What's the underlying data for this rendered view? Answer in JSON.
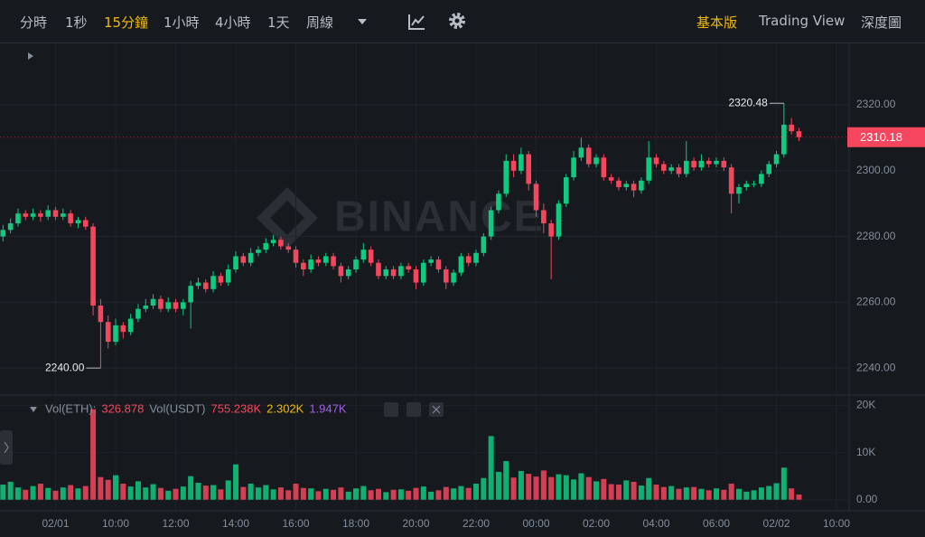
{
  "toolbar": {
    "intervals": [
      "分時",
      "1秒",
      "15分鐘",
      "1小時",
      "4小時",
      "1天",
      "周線"
    ],
    "views": [
      "基本版",
      "Trading View",
      "深度圖"
    ]
  },
  "chart_data": {
    "type": "candlestick",
    "watermark": "BINANCE",
    "up_color": "#0ecb81",
    "down_color": "#f6465d",
    "xlim": [
      6.15,
      34.42
    ],
    "xticks": [
      {
        "value": 8,
        "label": "02/01"
      },
      {
        "value": 10,
        "label": "10:00"
      },
      {
        "value": 12,
        "label": "12:00"
      },
      {
        "value": 14,
        "label": "14:00"
      },
      {
        "value": 16,
        "label": "16:00"
      },
      {
        "value": 18,
        "label": "18:00"
      },
      {
        "value": 20,
        "label": "20:00"
      },
      {
        "value": 22,
        "label": "22:00"
      },
      {
        "value": 24,
        "label": "00:00"
      },
      {
        "value": 26,
        "label": "02:00"
      },
      {
        "value": 28,
        "label": "04:00"
      },
      {
        "value": 30,
        "label": "06:00"
      },
      {
        "value": 32,
        "label": "02/02"
      },
      {
        "value": 34,
        "label": "10:00"
      }
    ],
    "ylim": [
      2231.8,
      2338.7
    ],
    "yticks": [
      {
        "value": 2240,
        "label": "2240.00"
      },
      {
        "value": 2260,
        "label": "2260.00"
      },
      {
        "value": 2280,
        "label": "2280.00"
      },
      {
        "value": 2300,
        "label": "2300.00"
      },
      {
        "value": 2320,
        "label": "2320.00"
      }
    ],
    "low_label": {
      "value": 2240,
      "label": "2240.00"
    },
    "candles": [
      [
        6.25,
        2280,
        2283.5,
        2278.5,
        2282
      ],
      [
        6.5,
        2282,
        2285.5,
        2281,
        2284
      ],
      [
        6.75,
        2284,
        2288.5,
        2283,
        2287
      ],
      [
        7,
        2287,
        2288,
        2285,
        2286
      ],
      [
        7.25,
        2286,
        2288.5,
        2285,
        2287
      ],
      [
        7.5,
        2287,
        2288,
        2284.5,
        2286
      ],
      [
        7.75,
        2286,
        2289.5,
        2285,
        2288
      ],
      [
        8,
        2288,
        2289,
        2285,
        2286
      ],
      [
        8.25,
        2286,
        2288.5,
        2285,
        2287
      ],
      [
        8.5,
        2287,
        2288,
        2283,
        2284
      ],
      [
        8.75,
        2284,
        2286,
        2282.5,
        2285
      ],
      [
        9,
        2285,
        2286,
        2282,
        2283
      ],
      [
        9.25,
        2283,
        2284,
        2256,
        2259
      ],
      [
        9.5,
        2259,
        2261,
        2240,
        2254
      ],
      [
        9.75,
        2254,
        2256,
        2246,
        2248
      ],
      [
        10,
        2248,
        2255,
        2247,
        2253
      ],
      [
        10.25,
        2253,
        2254,
        2249,
        2251
      ],
      [
        10.5,
        2251,
        2256.5,
        2250,
        2255
      ],
      [
        10.75,
        2255,
        2259.5,
        2254,
        2258
      ],
      [
        11,
        2258,
        2261,
        2257,
        2259
      ],
      [
        11.25,
        2259,
        2262.5,
        2258,
        2261
      ],
      [
        11.5,
        2261,
        2262,
        2257,
        2258
      ],
      [
        11.75,
        2258,
        2261.5,
        2257,
        2260
      ],
      [
        12,
        2260,
        2261,
        2257,
        2258
      ],
      [
        12.25,
        2258,
        2261,
        2256,
        2260
      ],
      [
        12.5,
        2260,
        2266.5,
        2252,
        2265
      ],
      [
        12.75,
        2265,
        2267.5,
        2264,
        2266
      ],
      [
        13,
        2266,
        2267,
        2263,
        2264
      ],
      [
        13.25,
        2264,
        2269.5,
        2263,
        2268
      ],
      [
        13.5,
        2268,
        2269,
        2265,
        2266
      ],
      [
        13.75,
        2266,
        2271.5,
        2265,
        2270
      ],
      [
        14,
        2270,
        2275.5,
        2269,
        2274
      ],
      [
        14.25,
        2274,
        2275,
        2271,
        2272
      ],
      [
        14.5,
        2272,
        2276.5,
        2271,
        2275
      ],
      [
        14.75,
        2275,
        2277,
        2274,
        2276
      ],
      [
        15,
        2276,
        2279.5,
        2275,
        2278
      ],
      [
        15.25,
        2278,
        2280.5,
        2277,
        2279
      ],
      [
        15.5,
        2279,
        2280,
        2276,
        2277
      ],
      [
        15.75,
        2277,
        2278,
        2275,
        2276
      ],
      [
        16,
        2276,
        2277,
        2270.5,
        2272
      ],
      [
        16.25,
        2272,
        2273,
        2268,
        2270
      ],
      [
        16.5,
        2270,
        2274.5,
        2269,
        2273
      ],
      [
        16.75,
        2273,
        2274,
        2271,
        2272
      ],
      [
        17,
        2272,
        2275,
        2271,
        2274
      ],
      [
        17.25,
        2274,
        2275,
        2270,
        2271
      ],
      [
        17.5,
        2271,
        2272,
        2266,
        2268
      ],
      [
        17.75,
        2268,
        2271,
        2267,
        2270
      ],
      [
        18,
        2270,
        2274,
        2269,
        2273
      ],
      [
        18.25,
        2273,
        2278,
        2272,
        2276
      ],
      [
        18.5,
        2276,
        2277,
        2271,
        2272
      ],
      [
        18.75,
        2272,
        2273,
        2267,
        2268
      ],
      [
        19,
        2268,
        2271,
        2267,
        2270
      ],
      [
        19.25,
        2270,
        2271,
        2267,
        2268
      ],
      [
        19.5,
        2268,
        2272,
        2267,
        2271
      ],
      [
        19.75,
        2271,
        2272,
        2269,
        2270
      ],
      [
        20,
        2270,
        2271,
        2264,
        2266
      ],
      [
        20.25,
        2266,
        2273,
        2265,
        2272
      ],
      [
        20.5,
        2272,
        2274,
        2271,
        2273
      ],
      [
        20.75,
        2273,
        2274,
        2269,
        2270
      ],
      [
        21,
        2270,
        2271,
        2264,
        2266
      ],
      [
        21.25,
        2266,
        2270,
        2265,
        2269
      ],
      [
        21.5,
        2269,
        2275,
        2268,
        2274
      ],
      [
        21.75,
        2274,
        2275,
        2271,
        2272
      ],
      [
        22,
        2272,
        2276,
        2271,
        2275
      ],
      [
        22.25,
        2275,
        2281,
        2274,
        2280
      ],
      [
        22.5,
        2280,
        2289,
        2279,
        2288
      ],
      [
        22.75,
        2288,
        2294,
        2287,
        2293
      ],
      [
        23,
        2293,
        2305,
        2292,
        2303
      ],
      [
        23.25,
        2303,
        2305,
        2298,
        2300
      ],
      [
        23.5,
        2300,
        2307,
        2299,
        2305
      ],
      [
        23.75,
        2305,
        2306,
        2294,
        2296
      ],
      [
        24,
        2296,
        2297,
        2286,
        2288
      ],
      [
        24.25,
        2288,
        2290,
        2281,
        2284
      ],
      [
        24.5,
        2284,
        2285,
        2267,
        2280
      ],
      [
        24.75,
        2280,
        2291,
        2279,
        2290
      ],
      [
        25,
        2290,
        2299,
        2289,
        2298
      ],
      [
        25.25,
        2298,
        2306,
        2297,
        2304
      ],
      [
        25.5,
        2304,
        2310,
        2303,
        2307
      ],
      [
        25.75,
        2307,
        2308,
        2301,
        2302
      ],
      [
        26,
        2302,
        2305,
        2301,
        2304
      ],
      [
        26.25,
        2304,
        2305,
        2297,
        2298
      ],
      [
        26.5,
        2298,
        2299,
        2296,
        2297
      ],
      [
        26.75,
        2297,
        2298,
        2294,
        2295
      ],
      [
        27,
        2295,
        2297,
        2294,
        2296
      ],
      [
        27.25,
        2296,
        2297,
        2292,
        2294
      ],
      [
        27.5,
        2294,
        2298,
        2293,
        2297
      ],
      [
        27.75,
        2297,
        2309,
        2296,
        2304
      ],
      [
        28,
        2304,
        2305,
        2301,
        2302
      ],
      [
        28.25,
        2302,
        2303,
        2299,
        2300
      ],
      [
        28.5,
        2300,
        2302,
        2299,
        2301
      ],
      [
        28.75,
        2301,
        2302,
        2298,
        2299
      ],
      [
        29,
        2299,
        2309,
        2298,
        2303
      ],
      [
        29.25,
        2303,
        2304,
        2300,
        2301
      ],
      [
        29.5,
        2301,
        2305,
        2300,
        2303
      ],
      [
        29.75,
        2303,
        2304,
        2301,
        2302
      ],
      [
        30,
        2302,
        2304,
        2301,
        2303
      ],
      [
        30.25,
        2303,
        2304,
        2300,
        2301
      ],
      [
        30.5,
        2301,
        2302,
        2287,
        2293
      ],
      [
        30.75,
        2293,
        2296,
        2290,
        2295
      ],
      [
        31,
        2295,
        2297,
        2294,
        2296
      ],
      [
        31.25,
        2296,
        2297,
        2295,
        2296
      ],
      [
        31.5,
        2296,
        2300,
        2295,
        2299
      ],
      [
        31.75,
        2299,
        2303,
        2298,
        2302
      ],
      [
        32,
        2302,
        2306,
        2301,
        2305
      ],
      [
        32.25,
        2305,
        2320.48,
        2304,
        2314
      ],
      [
        32.5,
        2314,
        2316,
        2311,
        2312
      ],
      [
        32.75,
        2312,
        2313,
        2309,
        2310.18
      ]
    ],
    "volume": {
      "ylim": [
        -2350,
        22200
      ],
      "yticks": [
        {
          "value": 20000,
          "label": "20K"
        },
        {
          "value": 10000,
          "label": "10K"
        },
        {
          "value": 0,
          "label": "0.00"
        }
      ],
      "legend": [
        {
          "text": "Vol(ETH):",
          "color": "#848e9c"
        },
        {
          "value": 326.878,
          "color": "#f6465d"
        },
        {
          "text": "Vol(USDT)",
          "color": "#848e9c"
        },
        {
          "value": 755238,
          "label": "755.238K",
          "color": "#f6465d"
        },
        {
          "value": 2302,
          "label": "2.302K",
          "color": "#f0b90b"
        },
        {
          "value": 1947,
          "label": "1.947K",
          "color": "#a35ee8"
        }
      ],
      "values": [
        3200,
        3800,
        2600,
        2100,
        2900,
        3400,
        2500,
        1900,
        2600,
        3100,
        2400,
        2900,
        19200,
        4800,
        4200,
        5200,
        3400,
        2800,
        3900,
        2600,
        3300,
        2500,
        1900,
        2300,
        2800,
        5000,
        3600,
        3000,
        3100,
        2200,
        4100,
        7500,
        2700,
        3400,
        2600,
        3100,
        2200,
        2600,
        2000,
        3400,
        2500,
        2400,
        1800,
        2300,
        2100,
        2600,
        1700,
        2400,
        2900,
        2000,
        2300,
        1600,
        2100,
        2200,
        1900,
        2500,
        2800,
        1700,
        2000,
        2700,
        2400,
        2900,
        2500,
        3400,
        4600,
        13500,
        5900,
        8200,
        4700,
        6100,
        5500,
        4900,
        6200,
        4800,
        5400,
        5200,
        4300,
        5600,
        4800,
        3900,
        4400,
        3300,
        3200,
        4100,
        3800,
        3000,
        4600,
        3200,
        2700,
        2900,
        2300,
        2600,
        2700,
        2300,
        2000,
        2400,
        2100,
        3400,
        2300,
        1700,
        2000,
        2600,
        2900,
        3500,
        6800,
        2400,
        1100
      ]
    }
  }
}
